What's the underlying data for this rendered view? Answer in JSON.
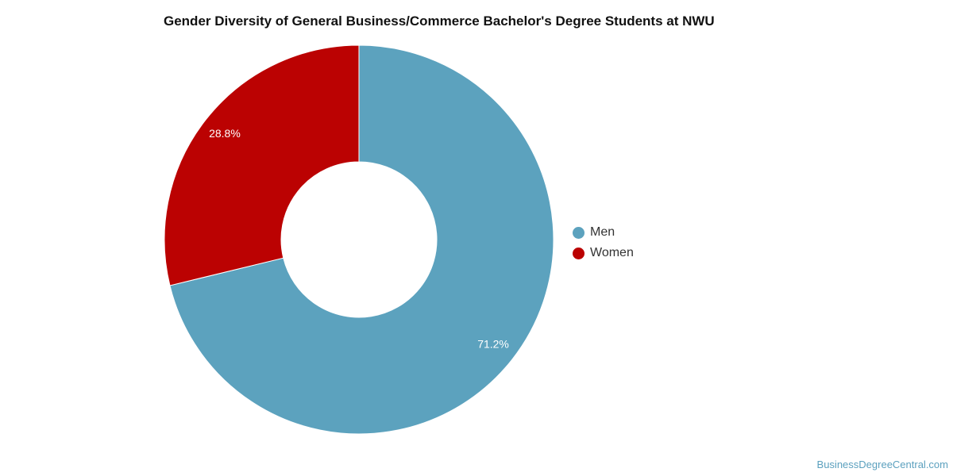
{
  "chart_data": {
    "type": "pie",
    "variant": "donut",
    "title": "Gender Diversity of General Business/Commerce Bachelor's Degree Students at NWU",
    "categories": [
      "Men",
      "Women"
    ],
    "values": [
      71.2,
      28.8
    ],
    "value_labels": [
      "71.2%",
      "28.8%"
    ],
    "colors": [
      "#5ca2be",
      "#bb0202"
    ],
    "legend_position": "right",
    "start_angle_deg": 0,
    "direction": "clockwise"
  },
  "source_text": "BusinessDegreeCentral.com"
}
